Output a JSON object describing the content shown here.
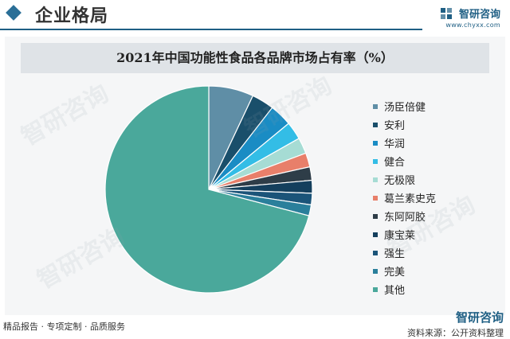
{
  "header": {
    "title": "企业格局",
    "brand_name": "智研咨询",
    "brand_url": "www.chyxx.com"
  },
  "footer": {
    "left_text": "精品报告 · 专项定制 · 品质服务",
    "brand_name": "智研咨询",
    "source_text": "资料来源：公开资料整理"
  },
  "watermark_text": "智研咨询",
  "colors": {
    "accent": "#1f5f84",
    "panel": "#f5f6f7",
    "title_bar": "#dfe3e7"
  },
  "chart_data": {
    "type": "pie",
    "title": "2021年中国功能性食品各品牌市场占有率（%）",
    "legend_position": "right",
    "categories": [
      "汤臣倍健",
      "安利",
      "华润",
      "健合",
      "无极限",
      "葛兰素史克",
      "东阿阿胶",
      "康宝莱",
      "强生",
      "完美",
      "其他"
    ],
    "values": [
      7.0,
      3.5,
      3.5,
      2.8,
      2.5,
      2.2,
      2.1,
      2.0,
      1.8,
      1.7,
      70.9
    ],
    "colors": [
      "#5f8ea6",
      "#1a4f6b",
      "#1a8cc4",
      "#33bde6",
      "#a6dcd4",
      "#e87f6a",
      "#2e3d48",
      "#143f5d",
      "#1b5479",
      "#2a7f9b",
      "#4aa89b"
    ]
  }
}
